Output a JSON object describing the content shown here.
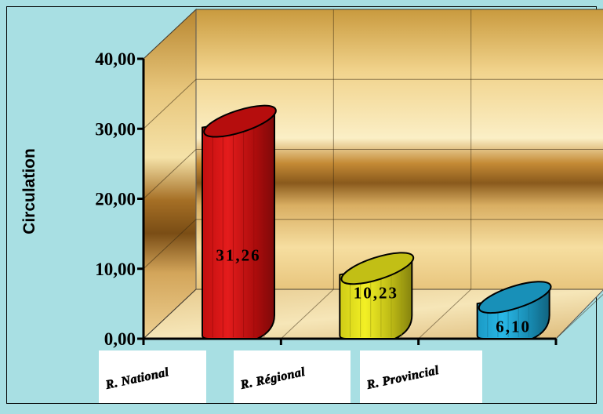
{
  "chart_data": {
    "type": "bar",
    "style": "3d-cylinder",
    "title": "",
    "xlabel": "",
    "ylabel": "Circulation",
    "ylim": [
      0,
      40
    ],
    "yticks": [
      "0,00",
      "10,00",
      "20,00",
      "30,00",
      "40,00"
    ],
    "categories": [
      "R. National",
      "R. Régional",
      "R. Provincial"
    ],
    "values": [
      31.26,
      10.23,
      6.1
    ],
    "value_labels": [
      "31,26",
      "10,23",
      "6,10"
    ],
    "colors": [
      "#e31010",
      "#f2ef1a",
      "#1eb4e6"
    ],
    "grid": true,
    "legend": "none",
    "background": {
      "outer": "#a8dfe3",
      "walls": "gold-gradient"
    }
  }
}
